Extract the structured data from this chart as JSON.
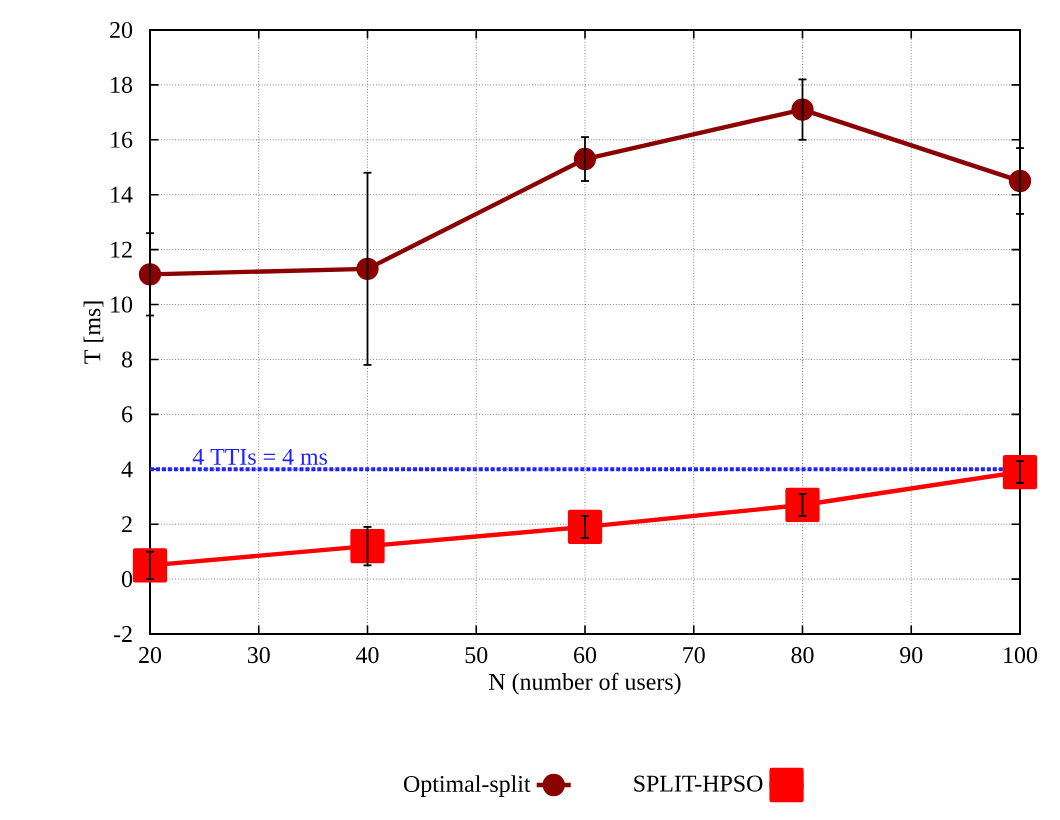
{
  "chart_data": {
    "type": "line",
    "xlabel": "N (number of users)",
    "ylabel": "T [ms]",
    "x": [
      20,
      40,
      60,
      80,
      100
    ],
    "series": [
      {
        "name": "Optimal-split",
        "color": "#8b0000",
        "marker": "circle",
        "values": [
          11.1,
          11.3,
          15.3,
          17.1,
          14.5
        ],
        "errors": [
          1.5,
          3.5,
          0.8,
          1.1,
          1.2
        ]
      },
      {
        "name": "SPLIT-HPSO",
        "color": "#ff0000",
        "marker": "square",
        "values": [
          0.5,
          1.2,
          1.9,
          2.7,
          3.9
        ],
        "errors": [
          0.5,
          0.7,
          0.4,
          0.4,
          0.4
        ]
      }
    ],
    "xlim": [
      20,
      100
    ],
    "xticks": [
      20,
      30,
      40,
      50,
      60,
      70,
      80,
      90,
      100
    ],
    "ylim": [
      -2,
      20
    ],
    "yticks": [
      -2,
      0,
      2,
      4,
      6,
      8,
      10,
      12,
      14,
      16,
      18,
      20
    ],
    "ref_lines": [
      {
        "axis": "y",
        "value": 4,
        "label": "4 TTIs = 4 ms",
        "color": "#2222ff",
        "line_style": "dotted"
      }
    ],
    "grid": true,
    "legend": "bottom",
    "line_style": "solid"
  }
}
